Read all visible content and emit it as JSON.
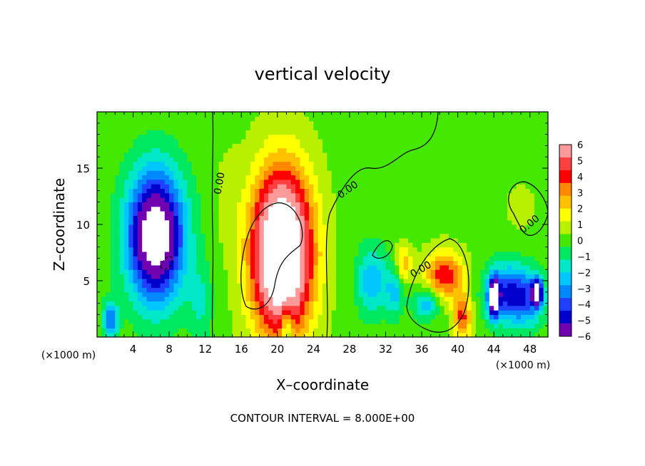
{
  "chart_data": {
    "type": "heatmap",
    "title": "vertical velocity",
    "xlabel": "X–coordinate",
    "ylabel": "Z–coordinate",
    "x_unit_left": "(×1000 m)",
    "x_unit_right": "(×1000 m)",
    "xlim": [
      0,
      50
    ],
    "ylim": [
      0,
      20
    ],
    "x_ticks": [
      4,
      8,
      12,
      16,
      20,
      24,
      28,
      32,
      36,
      40,
      44,
      48
    ],
    "y_ticks": [
      5,
      10,
      15
    ],
    "footer": "CONTOUR INTERVAL = 8.000E+00",
    "colorbar": {
      "levels": [
        "6",
        "5",
        "4",
        "3",
        "2",
        "1",
        "0",
        "−1",
        "−2",
        "−3",
        "−4",
        "−5",
        "−6"
      ],
      "colors": [
        "#ff9a9a",
        "#ff4040",
        "#ff0000",
        "#ff8800",
        "#ffc000",
        "#ffff00",
        "#b8f000",
        "#44e800",
        "#00e860",
        "#00e8c8",
        "#00c8ff",
        "#0088ff",
        "#2040ff",
        "#0000cc",
        "#7000b0"
      ]
    },
    "contour_labels": [
      "0.00",
      "0.00",
      "0.00",
      "0.00"
    ],
    "features": [
      {
        "x": 6.5,
        "z": 9.0,
        "sx": 2.2,
        "sz": 4.0,
        "w": -9
      },
      {
        "x": 20.5,
        "z": 7.5,
        "sx": 2.3,
        "sz": 5.0,
        "w": 11
      },
      {
        "x": 1.5,
        "z": 1.5,
        "sx": 0.6,
        "sz": 1.2,
        "w": -4
      },
      {
        "x": 30.5,
        "z": 5.0,
        "sx": 1.2,
        "sz": 2.2,
        "w": -3
      },
      {
        "x": 33.0,
        "z": 4.0,
        "sx": 0.7,
        "sz": 1.5,
        "w": -2.5
      },
      {
        "x": 34.0,
        "z": 6.5,
        "sx": 0.6,
        "sz": 1.2,
        "w": 2.5
      },
      {
        "x": 38.5,
        "z": 5.5,
        "sx": 1.5,
        "sz": 1.5,
        "w": 4.5
      },
      {
        "x": 40.5,
        "z": 1.8,
        "sx": 0.7,
        "sz": 1.4,
        "w": 4
      },
      {
        "x": 36.5,
        "z": 3.0,
        "sx": 1.0,
        "sz": 1.0,
        "w": -3
      },
      {
        "x": 45.0,
        "z": 4.0,
        "sx": 1.5,
        "sz": 1.8,
        "w": -4
      },
      {
        "x": 47.5,
        "z": 3.5,
        "sx": 1.5,
        "sz": 1.8,
        "w": -4
      },
      {
        "x": 44.0,
        "z": 3.5,
        "sx": 0.4,
        "sz": 1.2,
        "w": -7
      },
      {
        "x": 48.8,
        "z": 4.0,
        "sx": 0.4,
        "sz": 0.8,
        "w": -7
      },
      {
        "x": 21.0,
        "z": 0.8,
        "sx": 0.5,
        "sz": 1.6,
        "w": -3
      },
      {
        "x": 14.5,
        "z": 12.5,
        "sx": 1.0,
        "sz": 3.0,
        "w": 0.6
      },
      {
        "x": 11.5,
        "z": 3.0,
        "sx": 1.0,
        "sz": 2.5,
        "w": -1.5
      },
      {
        "x": 47.0,
        "z": 11.5,
        "sx": 1.5,
        "sz": 1.8,
        "w": 0.5
      }
    ]
  }
}
